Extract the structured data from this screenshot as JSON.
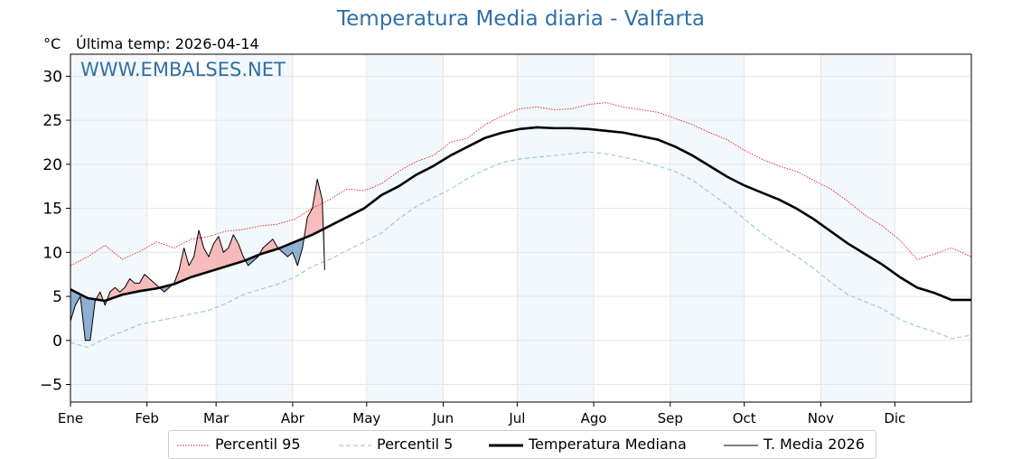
{
  "chart_data": {
    "type": "line",
    "title": "Temperatura Media diaria - Valfarta",
    "unit_label": "°C",
    "last_temp_label": "Última temp: 2026-04-14",
    "watermark": "WWW.EMBALSES.NET",
    "ylim": [
      -7,
      32.5
    ],
    "yticks": [
      -5,
      0,
      5,
      10,
      15,
      20,
      25,
      30
    ],
    "y_tick_labels": [
      "−5",
      "0",
      "5",
      "10",
      "15",
      "20",
      "25",
      "30"
    ],
    "xlim": [
      1,
      366
    ],
    "month_starts": [
      1,
      32,
      60,
      91,
      121,
      152,
      182,
      213,
      244,
      274,
      305,
      335
    ],
    "month_labels": [
      "Ene",
      "Feb",
      "Mar",
      "Abr",
      "May",
      "Jun",
      "Jul",
      "Ago",
      "Sep",
      "Oct",
      "Nov",
      "Dic"
    ],
    "shaded_months": [
      "Ene",
      "Mar",
      "May",
      "Jul",
      "Sep",
      "Nov"
    ],
    "grid": true,
    "legend_position": "bottom",
    "series": [
      {
        "name": "Percentil 95",
        "color": "#e31a1c",
        "style": "dotted",
        "x": [
          1,
          8,
          15,
          22,
          29,
          36,
          43,
          50,
          57,
          64,
          71,
          78,
          85,
          92,
          99,
          106,
          113,
          120,
          127,
          134,
          141,
          148,
          155,
          162,
          169,
          176,
          183,
          190,
          197,
          204,
          211,
          218,
          225,
          232,
          239,
          246,
          253,
          260,
          267,
          274,
          281,
          288,
          295,
          302,
          309,
          316,
          323,
          330,
          337,
          344,
          351,
          358,
          366
        ],
        "y": [
          8.5,
          9.5,
          10.8,
          9.2,
          10.1,
          11.2,
          10.5,
          11.5,
          11.8,
          12.4,
          12.6,
          13.0,
          13.2,
          13.8,
          15.0,
          16.0,
          17.2,
          17.0,
          17.8,
          19.2,
          20.3,
          21.0,
          22.5,
          23.0,
          24.5,
          25.5,
          26.3,
          26.5,
          26.2,
          26.3,
          26.8,
          27.0,
          26.5,
          26.2,
          25.9,
          25.2,
          24.5,
          23.6,
          22.8,
          21.6,
          20.6,
          19.8,
          19.2,
          18.2,
          17.2,
          15.8,
          14.2,
          13.0,
          11.4,
          9.2,
          9.8,
          10.5,
          9.5
        ]
      },
      {
        "name": "Percentil 5",
        "color": "#9ecae1",
        "style": "dashed",
        "x": [
          1,
          8,
          15,
          22,
          29,
          36,
          43,
          50,
          57,
          64,
          71,
          78,
          85,
          92,
          99,
          106,
          113,
          120,
          127,
          134,
          141,
          148,
          155,
          162,
          169,
          176,
          183,
          190,
          197,
          204,
          211,
          218,
          225,
          232,
          239,
          246,
          253,
          260,
          267,
          274,
          281,
          288,
          295,
          302,
          309,
          316,
          323,
          330,
          337,
          344,
          351,
          358,
          366
        ],
        "y": [
          -0.2,
          -0.8,
          0.2,
          1.0,
          1.8,
          2.2,
          2.6,
          3.0,
          3.4,
          4.2,
          5.2,
          5.8,
          6.4,
          7.2,
          8.4,
          9.2,
          10.2,
          11.2,
          12.2,
          13.8,
          15.2,
          16.2,
          17.2,
          18.4,
          19.4,
          20.2,
          20.6,
          20.8,
          21.0,
          21.2,
          21.4,
          21.2,
          20.8,
          20.4,
          19.8,
          19.2,
          18.2,
          16.8,
          15.4,
          13.8,
          12.2,
          10.8,
          9.6,
          8.2,
          6.6,
          5.2,
          4.4,
          3.6,
          2.4,
          1.6,
          1.0,
          0.2,
          0.6
        ]
      },
      {
        "name": "Temperatura Mediana",
        "color": "#000000",
        "style": "solid-thick",
        "x": [
          1,
          8,
          15,
          22,
          29,
          36,
          43,
          50,
          57,
          64,
          71,
          78,
          85,
          92,
          99,
          106,
          113,
          120,
          127,
          134,
          141,
          148,
          155,
          162,
          169,
          176,
          183,
          190,
          197,
          204,
          211,
          218,
          225,
          232,
          239,
          246,
          253,
          260,
          267,
          274,
          281,
          288,
          295,
          302,
          309,
          316,
          323,
          330,
          337,
          344,
          351,
          358,
          366
        ],
        "y": [
          5.8,
          4.8,
          4.5,
          5.2,
          5.6,
          5.9,
          6.4,
          7.2,
          7.8,
          8.4,
          9.0,
          9.8,
          10.4,
          11.2,
          12.0,
          13.0,
          14.0,
          15.0,
          16.5,
          17.5,
          18.8,
          19.8,
          21.0,
          22.0,
          23.0,
          23.6,
          24.0,
          24.2,
          24.1,
          24.1,
          24.0,
          23.8,
          23.6,
          23.2,
          22.8,
          22.0,
          21.0,
          19.8,
          18.6,
          17.6,
          16.8,
          16.0,
          15.0,
          13.8,
          12.4,
          11.0,
          9.8,
          8.6,
          7.2,
          6.0,
          5.4,
          4.6,
          4.6
        ]
      },
      {
        "name": "T. Media 2026",
        "color": "#000000",
        "style": "solid-thin",
        "x": [
          1,
          3,
          5,
          7,
          9,
          11,
          13,
          15,
          17,
          19,
          21,
          23,
          25,
          27,
          29,
          31,
          33,
          35,
          37,
          39,
          41,
          43,
          45,
          47,
          49,
          51,
          53,
          55,
          57,
          59,
          61,
          63,
          65,
          67,
          69,
          71,
          73,
          75,
          77,
          79,
          81,
          83,
          85,
          87,
          89,
          91,
          93,
          95,
          97,
          99,
          101,
          103,
          104
        ],
        "y": [
          2.2,
          4.0,
          5.0,
          0.0,
          0.0,
          4.5,
          5.5,
          4.0,
          5.5,
          6.0,
          5.5,
          6.0,
          7.0,
          6.5,
          6.5,
          7.5,
          7.0,
          6.5,
          6.0,
          5.5,
          6.0,
          6.5,
          8.0,
          10.5,
          8.5,
          9.5,
          12.5,
          10.5,
          9.5,
          11.0,
          11.8,
          10.0,
          10.5,
          12.0,
          11.0,
          9.5,
          8.5,
          9.0,
          9.5,
          10.5,
          11.0,
          11.5,
          10.5,
          10.0,
          9.5,
          10.0,
          8.5,
          10.5,
          14.0,
          15.0,
          18.3,
          16.0,
          8.0
        ]
      }
    ]
  },
  "legend": {
    "p95": "Percentil 95",
    "p5": "Percentil 5",
    "median": "Temperatura Mediana",
    "current": "T. Media 2026"
  }
}
